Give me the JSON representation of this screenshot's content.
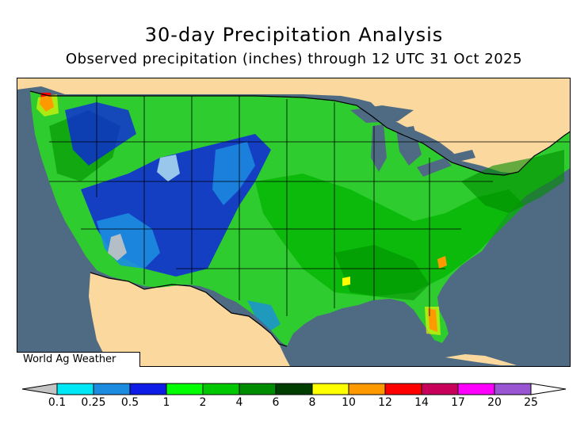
{
  "title": "30-day Precipitation Analysis",
  "subtitle": "Observed precipitation (inches) through 12 UTC 31 Oct 2025",
  "watermark": "World Ag Weather",
  "colors": {
    "ocean": "#4f6b83",
    "non_us_land": "#fbd89d",
    "default_fill": "#2fcc2f"
  },
  "legend": {
    "unit": "inches",
    "colors": [
      "#c4c4c4",
      "#00e8f5",
      "#1c8ce0",
      "#0e1ce8",
      "#00ff00",
      "#00c800",
      "#008c00",
      "#003e00",
      "#ffff00",
      "#ff9900",
      "#ff0000",
      "#c8005a",
      "#ff00ff",
      "#9a55d2",
      "#ffffff"
    ],
    "labels": [
      "0.1",
      "0.25",
      "0.5",
      "1",
      "2",
      "4",
      "6",
      "8",
      "10",
      "12",
      "14",
      "17",
      "20",
      "25"
    ]
  }
}
